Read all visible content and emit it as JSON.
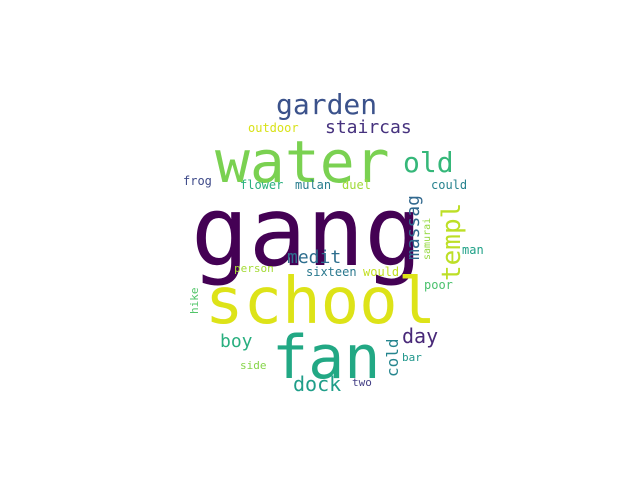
{
  "words": [
    {
      "text": "gang",
      "color": "#440154"
    },
    {
      "text": "school",
      "color": "#dde318"
    },
    {
      "text": "water",
      "color": "#7ad151"
    },
    {
      "text": "fan",
      "color": "#22a884"
    },
    {
      "text": "garden",
      "color": "#3b528b"
    },
    {
      "text": "templ",
      "color": "#bddf26"
    },
    {
      "text": "old",
      "color": "#35b779"
    },
    {
      "text": "staircas",
      "color": "#46327e"
    },
    {
      "text": "massag",
      "color": "#31688e"
    },
    {
      "text": "medit",
      "color": "#2e6e8e"
    },
    {
      "text": "day",
      "color": "#482878"
    },
    {
      "text": "dock",
      "color": "#1f9e89"
    },
    {
      "text": "boy",
      "color": "#29af7f"
    },
    {
      "text": "cold",
      "color": "#25858e"
    },
    {
      "text": "outdoor",
      "color": "#d8e219"
    },
    {
      "text": "frog",
      "color": "#3e4a89"
    },
    {
      "text": "flower",
      "color": "#2ab07f"
    },
    {
      "text": "mulan",
      "color": "#287d8e"
    },
    {
      "text": "duel",
      "color": "#a0da39"
    },
    {
      "text": "could",
      "color": "#26828e"
    },
    {
      "text": "samurai",
      "color": "#95d840"
    },
    {
      "text": "man",
      "color": "#1fa187"
    },
    {
      "text": "person",
      "color": "#a5db36"
    },
    {
      "text": "sixteen",
      "color": "#2a788e"
    },
    {
      "text": "would",
      "color": "#c2df23"
    },
    {
      "text": "poor",
      "color": "#4ac16d"
    },
    {
      "text": "hike",
      "color": "#52c569"
    },
    {
      "text": "side",
      "color": "#86d549"
    },
    {
      "text": "bar",
      "color": "#1f968b"
    },
    {
      "text": "two",
      "color": "#433e85"
    }
  ]
}
